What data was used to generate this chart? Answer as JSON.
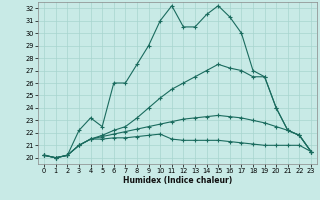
{
  "xlabel": "Humidex (Indice chaleur)",
  "xlim": [
    -0.5,
    23.5
  ],
  "ylim": [
    19.5,
    32.5
  ],
  "xticks": [
    0,
    1,
    2,
    3,
    4,
    5,
    6,
    7,
    8,
    9,
    10,
    11,
    12,
    13,
    14,
    15,
    16,
    17,
    18,
    19,
    20,
    21,
    22,
    23
  ],
  "yticks": [
    20,
    21,
    22,
    23,
    24,
    25,
    26,
    27,
    28,
    29,
    30,
    31,
    32
  ],
  "bg_color": "#c8eae6",
  "line_color": "#1a6b5e",
  "grid_color": "#a8d5cf",
  "lines": [
    {
      "x": [
        0,
        1,
        2,
        3,
        4,
        5,
        6,
        7,
        8,
        9,
        10,
        11,
        12,
        13,
        14,
        15,
        16,
        17,
        18,
        19,
        20,
        21,
        22,
        23
      ],
      "y": [
        20.2,
        20.0,
        20.2,
        22.2,
        23.2,
        22.5,
        26.0,
        26.0,
        27.5,
        29.0,
        31.0,
        32.2,
        30.5,
        30.5,
        31.5,
        32.2,
        31.3,
        30.0,
        27.0,
        26.5,
        24.0,
        22.2,
        21.8,
        20.5
      ]
    },
    {
      "x": [
        0,
        1,
        2,
        3,
        4,
        5,
        6,
        7,
        8,
        9,
        10,
        11,
        12,
        13,
        14,
        15,
        16,
        17,
        18,
        19,
        20,
        21,
        22,
        23
      ],
      "y": [
        20.2,
        20.0,
        20.2,
        21.0,
        21.5,
        21.5,
        21.6,
        21.6,
        21.7,
        21.8,
        21.9,
        21.5,
        21.4,
        21.4,
        21.4,
        21.4,
        21.3,
        21.2,
        21.1,
        21.0,
        21.0,
        21.0,
        21.0,
        20.5
      ]
    },
    {
      "x": [
        0,
        1,
        2,
        3,
        4,
        5,
        6,
        7,
        8,
        9,
        10,
        11,
        12,
        13,
        14,
        15,
        16,
        17,
        18,
        19,
        20,
        21,
        22,
        23
      ],
      "y": [
        20.2,
        20.0,
        20.2,
        21.0,
        21.5,
        21.7,
        21.9,
        22.1,
        22.3,
        22.5,
        22.7,
        22.9,
        23.1,
        23.2,
        23.3,
        23.4,
        23.3,
        23.2,
        23.0,
        22.8,
        22.5,
        22.2,
        21.8,
        20.5
      ]
    },
    {
      "x": [
        0,
        1,
        2,
        3,
        4,
        5,
        6,
        7,
        8,
        9,
        10,
        11,
        12,
        13,
        14,
        15,
        16,
        17,
        18,
        19,
        20,
        21,
        22,
        23
      ],
      "y": [
        20.2,
        20.0,
        20.2,
        21.0,
        21.5,
        21.8,
        22.2,
        22.5,
        23.2,
        24.0,
        24.8,
        25.5,
        26.0,
        26.5,
        27.0,
        27.5,
        27.2,
        27.0,
        26.5,
        26.5,
        24.0,
        22.2,
        21.8,
        20.5
      ]
    }
  ]
}
